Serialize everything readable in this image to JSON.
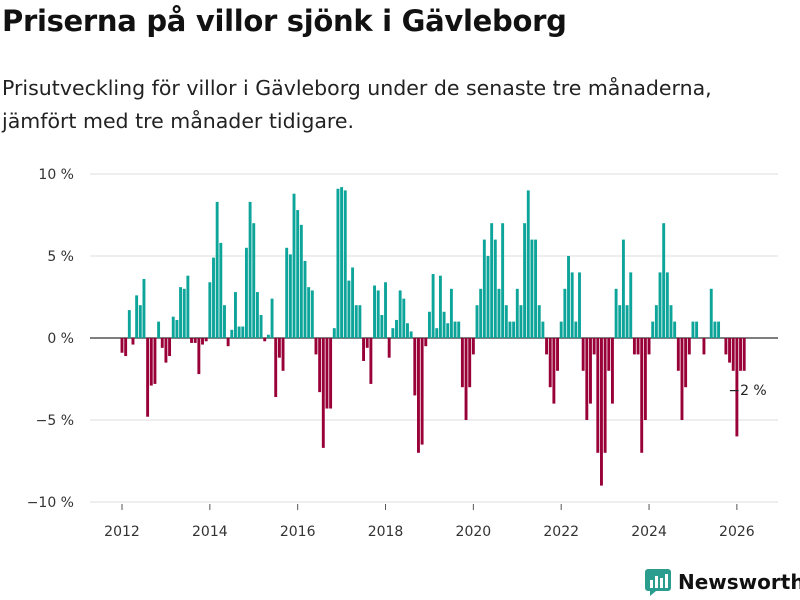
{
  "title": "Priserna på villor sjönk i Gävleborg",
  "subtitle": "Prisutveckling för villor i Gävleborg under de senaste tre månaderna, jämfört med tre månader tidigare.",
  "brand": {
    "name": "Newsworthy",
    "color": "#2a9d8f"
  },
  "colors": {
    "positive": "#0da49a",
    "negative": "#990038",
    "grid": "#dddddd",
    "zero": "#333333"
  },
  "chart_data": {
    "type": "bar",
    "start": "2012-01",
    "ylim": [
      -10,
      10
    ],
    "yticks": [
      {
        "value": 10,
        "label": "10 %"
      },
      {
        "value": 5,
        "label": "5 %"
      },
      {
        "value": 0,
        "label": "0 %"
      },
      {
        "value": -5,
        "label": "−5 %"
      },
      {
        "value": -10,
        "label": "−10 %"
      }
    ],
    "xticks": [
      {
        "month": 0,
        "label": "2012"
      },
      {
        "month": 24,
        "label": "2014"
      },
      {
        "month": 48,
        "label": "2016"
      },
      {
        "month": 72,
        "label": "2018"
      },
      {
        "month": 96,
        "label": "2020"
      },
      {
        "month": 120,
        "label": "2022"
      },
      {
        "month": 144,
        "label": "2024"
      },
      {
        "month": 168,
        "label": "2026"
      }
    ],
    "values": [
      -0.9,
      -1.1,
      1.7,
      -0.4,
      2.6,
      2.0,
      3.6,
      -4.8,
      -2.9,
      -2.8,
      1.0,
      -0.6,
      -1.5,
      -1.1,
      1.3,
      1.1,
      3.1,
      3.0,
      3.8,
      -0.3,
      -0.3,
      -2.2,
      -0.4,
      -0.2,
      3.4,
      4.9,
      8.3,
      5.8,
      2.0,
      -0.5,
      0.5,
      2.8,
      0.7,
      0.7,
      5.5,
      8.3,
      7.0,
      2.8,
      1.4,
      -0.2,
      0.2,
      2.4,
      -3.6,
      -1.2,
      -2.0,
      5.5,
      5.1,
      8.8,
      7.8,
      6.9,
      4.7,
      3.1,
      2.9,
      -1.0,
      -3.3,
      -6.7,
      -4.3,
      -4.3,
      0.6,
      9.1,
      9.2,
      9.0,
      3.5,
      4.3,
      2.0,
      2.0,
      -1.4,
      -0.6,
      -2.8,
      3.2,
      2.9,
      1.4,
      3.4,
      -1.2,
      0.6,
      1.1,
      2.9,
      2.4,
      0.9,
      0.4,
      -3.5,
      -7.0,
      -6.5,
      -0.5,
      1.6,
      3.9,
      0.6,
      3.8,
      1.6,
      0.9,
      3.0,
      1.0,
      1.0,
      -3.0,
      -5.0,
      -3.0,
      -1.0,
      2.0,
      3.0,
      6.0,
      5.0,
      7.0,
      6.0,
      3.0,
      7.0,
      2.0,
      1.0,
      1.0,
      3.0,
      2.0,
      7.0,
      9.0,
      6.0,
      6.0,
      2.0,
      1.0,
      -1.0,
      -3.0,
      -4.0,
      -2.0,
      1.0,
      3.0,
      5.0,
      4.0,
      1.0,
      4.0,
      -2.0,
      -5.0,
      -4.0,
      -1.0,
      -7.0,
      -9.0,
      -7.0,
      -2.0,
      -4.0,
      3.0,
      2.0,
      6.0,
      2.0,
      4.0,
      -1.0,
      -1.0,
      -7.0,
      -5.0,
      -1.0,
      1.0,
      2.0,
      4.0,
      7.0,
      4.0,
      2.0,
      1.0,
      -2.0,
      -5.0,
      -3.0,
      -1.0,
      1.0,
      1.0,
      0.0,
      -1.0,
      0.0,
      3.0,
      1.0,
      1.0,
      0.0,
      -1.0,
      -1.5,
      -2.0,
      -6.0,
      -2.0,
      -2.0
    ],
    "annotation": {
      "label": "−2 %",
      "month": 169
    }
  }
}
